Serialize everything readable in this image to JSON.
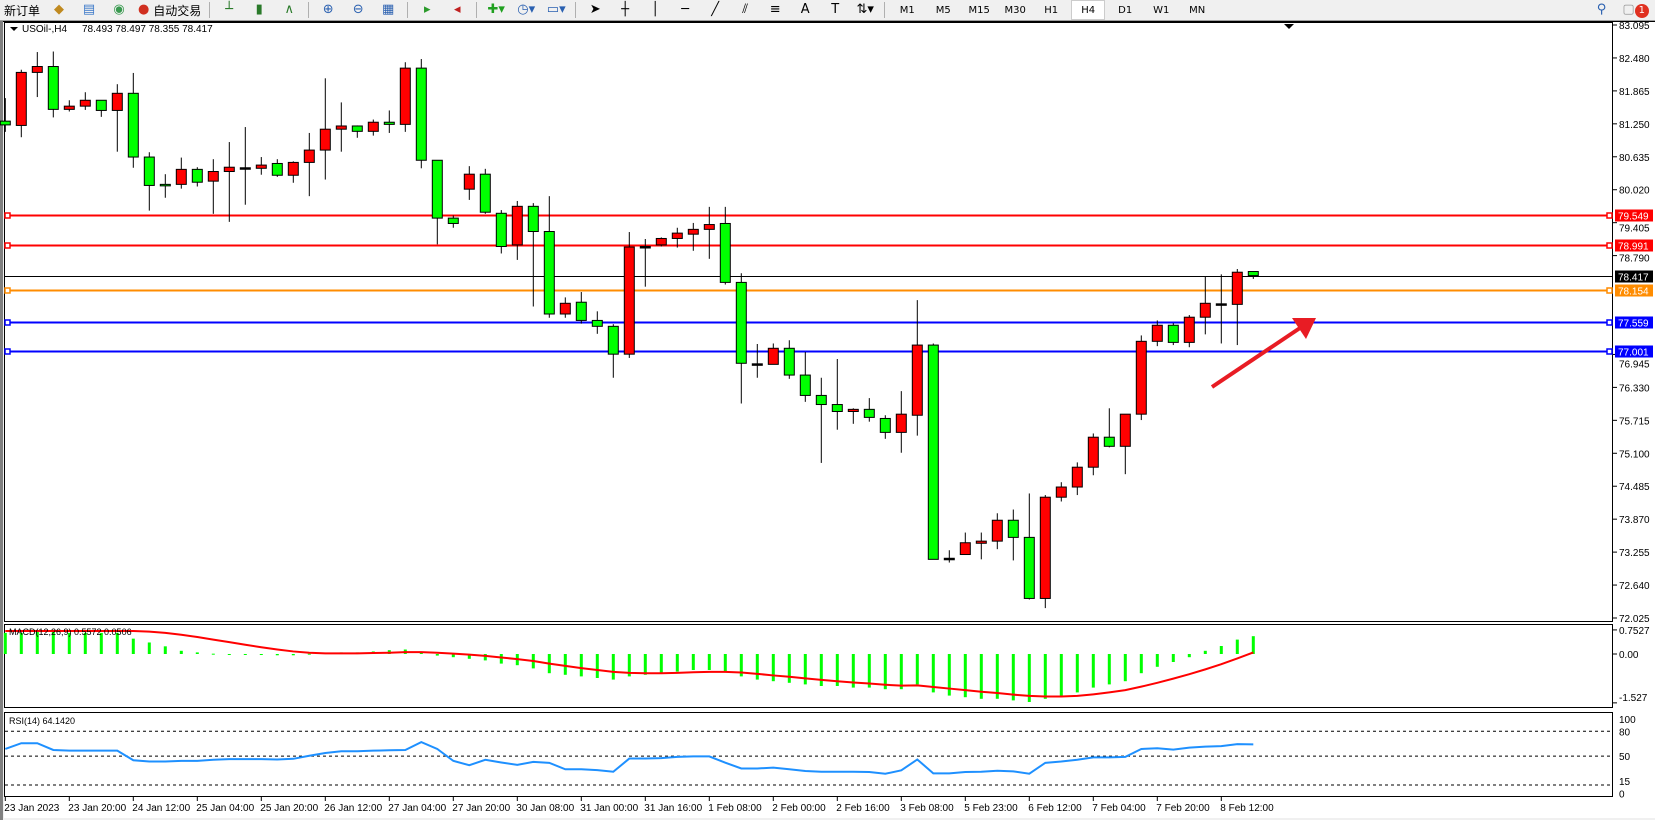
{
  "toolbar": {
    "new_order_label": "新订单",
    "auto_trading_label": "自动交易",
    "timeframes": [
      "M1",
      "M5",
      "M15",
      "M30",
      "H1",
      "H4",
      "D1",
      "W1",
      "MN"
    ],
    "active_timeframe": "H4",
    "notification_count": "1"
  },
  "chart_header": {
    "symbol": "USOil-,H4",
    "ohlc": "78.493 78.497 78.355 78.417"
  },
  "colors": {
    "bull_candle": "#ff0000",
    "bear_candle": "#00ff00",
    "resistance_line": "#ff0000",
    "support_line": "#0000ff",
    "orange_line": "#ff8c00",
    "macd_hist": "#00ff00",
    "macd_signal": "#ff0000",
    "rsi": "#1e90ff"
  },
  "chart_data": {
    "type": "candlestick",
    "symbol": "USOil-",
    "timeframe": "H4",
    "ylim": [
      72.025,
      83.095
    ],
    "price_ticks": [
      "83.095",
      "82.480",
      "81.865",
      "81.250",
      "80.635",
      "80.020",
      "79.405",
      "78.790",
      "76.945",
      "76.330",
      "75.715",
      "75.100",
      "74.485",
      "73.870",
      "73.255",
      "72.640",
      "72.025"
    ],
    "time_labels": [
      "23 Jan 2023",
      "23 Jan 20:00",
      "24 Jan 12:00",
      "25 Jan 04:00",
      "25 Jan 20:00",
      "26 Jan 12:00",
      "27 Jan 04:00",
      "27 Jan 20:00",
      "30 Jan 08:00",
      "31 Jan 00:00",
      "31 Jan 16:00",
      "1 Feb 08:00",
      "2 Feb 00:00",
      "2 Feb 16:00",
      "3 Feb 08:00",
      "5 Feb 23:00",
      "6 Feb 12:00",
      "7 Feb 04:00",
      "7 Feb 20:00",
      "8 Feb 12:00"
    ],
    "time_label_every_n_bars": 4,
    "candles_ohlc": [
      [
        81.3,
        81.73,
        81.1,
        81.23
      ],
      [
        81.22,
        82.26,
        81.0,
        82.21
      ],
      [
        82.21,
        82.59,
        81.75,
        82.32
      ],
      [
        82.32,
        82.6,
        81.37,
        81.52
      ],
      [
        81.52,
        81.69,
        81.48,
        81.58
      ],
      [
        81.58,
        81.84,
        81.51,
        81.69
      ],
      [
        81.69,
        81.69,
        81.38,
        81.5
      ],
      [
        81.5,
        81.99,
        80.73,
        81.82
      ],
      [
        81.82,
        82.2,
        80.43,
        80.63
      ],
      [
        80.63,
        80.72,
        79.63,
        80.1
      ],
      [
        80.12,
        80.31,
        79.87,
        80.11
      ],
      [
        80.12,
        80.62,
        80.04,
        80.4
      ],
      [
        80.4,
        80.44,
        80.08,
        80.16
      ],
      [
        80.18,
        80.59,
        79.57,
        80.36
      ],
      [
        80.36,
        80.91,
        79.42,
        80.44
      ],
      [
        80.43,
        81.19,
        79.74,
        80.43
      ],
      [
        80.42,
        80.63,
        80.3,
        80.48
      ],
      [
        80.51,
        80.59,
        80.26,
        80.29
      ],
      [
        80.29,
        80.55,
        80.15,
        80.53
      ],
      [
        80.53,
        81.08,
        79.9,
        80.76
      ],
      [
        80.76,
        82.1,
        80.21,
        81.15
      ],
      [
        81.15,
        81.65,
        80.73,
        81.21
      ],
      [
        81.21,
        81.22,
        80.99,
        81.11
      ],
      [
        81.11,
        81.33,
        81.03,
        81.28
      ],
      [
        81.28,
        81.5,
        81.08,
        81.24
      ],
      [
        81.24,
        82.4,
        81.1,
        82.29
      ],
      [
        82.29,
        82.46,
        80.42,
        80.57
      ],
      [
        80.57,
        80.57,
        79.0,
        79.49
      ],
      [
        79.49,
        79.54,
        79.31,
        79.39
      ],
      [
        80.03,
        80.46,
        79.83,
        80.31
      ],
      [
        80.31,
        80.41,
        79.57,
        79.6
      ],
      [
        79.58,
        79.64,
        78.83,
        78.96
      ],
      [
        78.99,
        79.81,
        78.71,
        79.71
      ],
      [
        79.71,
        79.77,
        77.84,
        79.24
      ],
      [
        79.24,
        79.9,
        77.63,
        77.7
      ],
      [
        77.7,
        78.01,
        77.63,
        77.9
      ],
      [
        77.92,
        78.11,
        77.52,
        77.58
      ],
      [
        77.58,
        77.75,
        77.33,
        77.47
      ],
      [
        77.47,
        77.51,
        76.51,
        76.95
      ],
      [
        76.95,
        79.23,
        76.88,
        78.95
      ],
      [
        78.96,
        79.1,
        78.21,
        78.96
      ],
      [
        78.99,
        79.13,
        78.96,
        79.11
      ],
      [
        79.11,
        79.31,
        78.94,
        79.21
      ],
      [
        79.19,
        79.4,
        78.88,
        79.28
      ],
      [
        79.28,
        79.7,
        78.73,
        79.37
      ],
      [
        79.39,
        79.7,
        78.25,
        78.29
      ],
      [
        78.29,
        78.46,
        76.03,
        76.78
      ],
      [
        76.77,
        77.14,
        76.51,
        76.77
      ],
      [
        76.76,
        77.15,
        76.76,
        77.06
      ],
      [
        77.06,
        77.21,
        76.49,
        76.56
      ],
      [
        76.56,
        76.99,
        76.06,
        76.18
      ],
      [
        76.18,
        76.51,
        74.92,
        76.01
      ],
      [
        76.01,
        76.86,
        75.54,
        75.88
      ],
      [
        75.88,
        75.94,
        75.65,
        75.92
      ],
      [
        75.92,
        76.13,
        75.69,
        75.77
      ],
      [
        75.75,
        75.81,
        75.37,
        75.49
      ],
      [
        75.49,
        76.26,
        75.11,
        75.83
      ],
      [
        75.81,
        77.96,
        75.43,
        77.12
      ],
      [
        77.12,
        77.15,
        73.12,
        73.12
      ],
      [
        73.14,
        73.29,
        73.06,
        73.14
      ],
      [
        73.21,
        73.62,
        73.21,
        73.43
      ],
      [
        73.42,
        73.62,
        73.12,
        73.46
      ],
      [
        73.46,
        73.98,
        73.31,
        73.85
      ],
      [
        73.85,
        74.05,
        73.1,
        73.53
      ],
      [
        73.53,
        74.35,
        72.37,
        72.39
      ],
      [
        72.39,
        74.32,
        72.21,
        74.28
      ],
      [
        74.28,
        74.56,
        74.2,
        74.47
      ],
      [
        74.47,
        74.93,
        74.32,
        74.84
      ],
      [
        74.84,
        75.47,
        74.69,
        75.4
      ],
      [
        75.4,
        75.94,
        75.21,
        75.23
      ],
      [
        75.23,
        75.83,
        74.71,
        75.83
      ],
      [
        75.83,
        77.3,
        75.72,
        77.19
      ],
      [
        77.19,
        77.58,
        77.1,
        77.49
      ],
      [
        77.49,
        77.53,
        77.12,
        77.17
      ],
      [
        77.17,
        77.68,
        77.08,
        77.64
      ],
      [
        77.64,
        78.4,
        77.32,
        77.9
      ],
      [
        77.89,
        78.44,
        77.15,
        77.89
      ],
      [
        77.88,
        78.54,
        77.12,
        78.48
      ],
      [
        78.493,
        78.497,
        78.355,
        78.417
      ]
    ],
    "horizontal_lines": [
      {
        "price": 79.549,
        "label": "79.549",
        "color": "#ff0000"
      },
      {
        "price": 78.991,
        "label": "78.991",
        "color": "#ff0000"
      },
      {
        "price": 78.417,
        "label": "78.417",
        "color": "#000000"
      },
      {
        "price": 78.154,
        "label": "78.154",
        "color": "#ff8c00"
      },
      {
        "price": 77.559,
        "label": "77.559",
        "color": "#0000ff"
      },
      {
        "price": 77.001,
        "label": "77.001",
        "color": "#0000ff"
      }
    ],
    "annotation": "red-arrow-up-right",
    "macd": {
      "label": "MACD(12,26,9) 0.5572 0.0506",
      "ylim": [
        -1.527,
        0.7527
      ],
      "ticks": [
        "0.7527",
        "0.00",
        "-1.527"
      ],
      "histogram": [
        0.66,
        0.66,
        0.7,
        0.7,
        0.66,
        0.66,
        0.66,
        0.66,
        0.48,
        0.36,
        0.24,
        0.1,
        0.05,
        0.01,
        -0.01,
        -0.02,
        -0.03,
        -0.04,
        -0.04,
        0.01,
        0.04,
        0.05,
        0.05,
        0.08,
        0.12,
        0.14,
        0.05,
        -0.05,
        -0.1,
        -0.15,
        -0.2,
        -0.3,
        -0.35,
        -0.45,
        -0.6,
        -0.65,
        -0.7,
        -0.75,
        -0.8,
        -0.7,
        -0.65,
        -0.6,
        -0.55,
        -0.5,
        -0.5,
        -0.55,
        -0.7,
        -0.8,
        -0.85,
        -0.9,
        -0.95,
        -1.0,
        -1.0,
        -1.05,
        -1.05,
        -1.1,
        -1.1,
        -0.95,
        -1.2,
        -1.3,
        -1.35,
        -1.4,
        -1.4,
        -1.45,
        -1.5,
        -1.4,
        -1.3,
        -1.2,
        -1.05,
        -0.95,
        -0.85,
        -0.6,
        -0.4,
        -0.25,
        -0.1,
        0.1,
        0.25,
        0.45,
        0.5572
      ],
      "signal": [
        0.72,
        0.72,
        0.72,
        0.72,
        0.72,
        0.72,
        0.72,
        0.72,
        0.72,
        0.7,
        0.66,
        0.6,
        0.53,
        0.45,
        0.37,
        0.29,
        0.21,
        0.14,
        0.08,
        0.04,
        0.02,
        0.02,
        0.02,
        0.03,
        0.04,
        0.06,
        0.06,
        0.04,
        0.01,
        -0.02,
        -0.06,
        -0.11,
        -0.16,
        -0.22,
        -0.3,
        -0.37,
        -0.44,
        -0.5,
        -0.56,
        -0.59,
        -0.6,
        -0.6,
        -0.59,
        -0.57,
        -0.56,
        -0.56,
        -0.58,
        -0.62,
        -0.67,
        -0.71,
        -0.76,
        -0.81,
        -0.85,
        -0.89,
        -0.92,
        -0.96,
        -0.99,
        -0.98,
        -1.03,
        -1.08,
        -1.13,
        -1.18,
        -1.22,
        -1.27,
        -1.31,
        -1.33,
        -1.33,
        -1.31,
        -1.26,
        -1.2,
        -1.13,
        -1.02,
        -0.9,
        -0.77,
        -0.63,
        -0.48,
        -0.32,
        -0.14,
        0.0506
      ]
    },
    "rsi": {
      "label": "RSI(14) 64.1420",
      "ylim": [
        0,
        100
      ],
      "ticks": [
        "100",
        "80",
        "50",
        "15",
        "0"
      ],
      "levels": [
        80,
        50,
        15
      ],
      "values": [
        58.6,
        65.6,
        65.6,
        57.4,
        56.6,
        56.6,
        56.6,
        56.6,
        45,
        43.4,
        43.4,
        44.2,
        44.2,
        45.5,
        46.3,
        46.3,
        46.3,
        45.9,
        46.7,
        50.4,
        53.7,
        55.8,
        55.8,
        56.6,
        57,
        57.4,
        66.9,
        58.6,
        44.2,
        38.9,
        45.5,
        42.2,
        39.3,
        43,
        41.8,
        34,
        34,
        33,
        31,
        47,
        47,
        47.5,
        49,
        49.6,
        49.6,
        42,
        35,
        35,
        36,
        34,
        32,
        31,
        31,
        31,
        30.7,
        28.6,
        32.7,
        45.9,
        29,
        29,
        30.7,
        31,
        32.3,
        31.5,
        28.6,
        41.8,
        43.4,
        45.5,
        48.4,
        48.4,
        49,
        58.6,
        59.5,
        57.8,
        60.3,
        61.5,
        62,
        64.4,
        64.142
      ]
    }
  }
}
